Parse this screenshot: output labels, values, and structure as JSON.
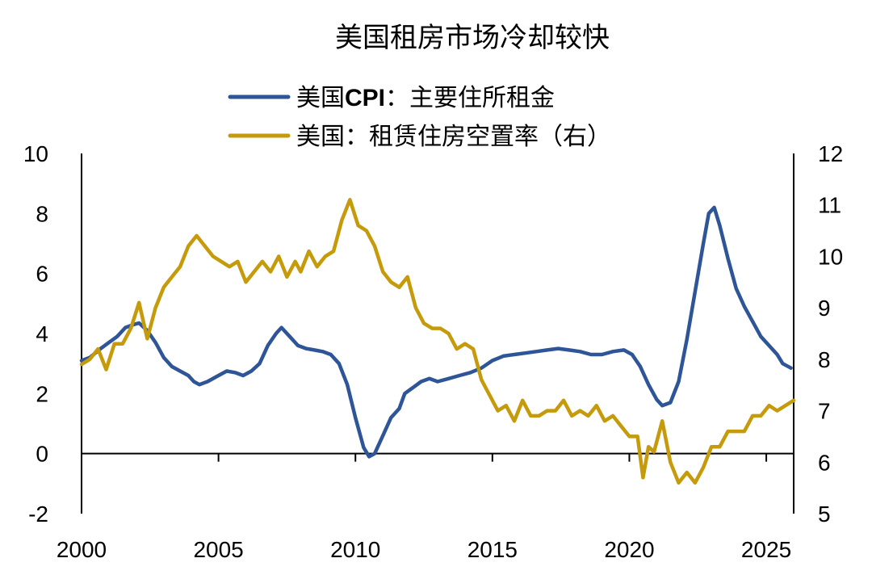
{
  "chart_data": {
    "type": "line",
    "title": "美国租房市场冷却较快",
    "legend": [
      {
        "name_prefix": "美国",
        "name_bold": "CPI",
        "name_suffix": "：主要住所租金",
        "color": "#2E5597"
      },
      {
        "name_prefix": "美国：租赁住房空置率（右）",
        "name_bold": "",
        "name_suffix": "",
        "color": "#C59A0B"
      }
    ],
    "x_axis": {
      "range": [
        2000,
        2026
      ],
      "ticks": [
        2000,
        2005,
        2010,
        2015,
        2020,
        2025
      ]
    },
    "y_left": {
      "range": [
        -2,
        10
      ],
      "ticks": [
        -2,
        0,
        2,
        4,
        6,
        8,
        10
      ]
    },
    "y_right": {
      "range": [
        5,
        12
      ],
      "ticks": [
        5,
        6,
        7,
        8,
        9,
        10,
        11,
        12
      ]
    },
    "series": [
      {
        "name": "美国CPI：主要住所租金",
        "axis": "left",
        "color": "#2E5597",
        "points": [
          [
            2000.0,
            3.1
          ],
          [
            2000.3,
            3.2
          ],
          [
            2000.7,
            3.5
          ],
          [
            2001.0,
            3.7
          ],
          [
            2001.3,
            3.9
          ],
          [
            2001.6,
            4.2
          ],
          [
            2001.9,
            4.3
          ],
          [
            2002.1,
            4.35
          ],
          [
            2002.4,
            4.1
          ],
          [
            2002.7,
            3.7
          ],
          [
            2003.0,
            3.2
          ],
          [
            2003.3,
            2.9
          ],
          [
            2003.6,
            2.75
          ],
          [
            2003.9,
            2.6
          ],
          [
            2004.1,
            2.4
          ],
          [
            2004.3,
            2.3
          ],
          [
            2004.6,
            2.4
          ],
          [
            2005.0,
            2.6
          ],
          [
            2005.3,
            2.75
          ],
          [
            2005.6,
            2.7
          ],
          [
            2005.9,
            2.6
          ],
          [
            2006.2,
            2.75
          ],
          [
            2006.5,
            3.0
          ],
          [
            2006.8,
            3.6
          ],
          [
            2007.1,
            4.0
          ],
          [
            2007.3,
            4.2
          ],
          [
            2007.6,
            3.9
          ],
          [
            2007.9,
            3.6
          ],
          [
            2008.2,
            3.5
          ],
          [
            2008.5,
            3.45
          ],
          [
            2008.8,
            3.4
          ],
          [
            2009.1,
            3.3
          ],
          [
            2009.4,
            3.0
          ],
          [
            2009.7,
            2.3
          ],
          [
            2010.0,
            1.2
          ],
          [
            2010.3,
            0.2
          ],
          [
            2010.5,
            -0.1
          ],
          [
            2010.7,
            0.0
          ],
          [
            2011.0,
            0.6
          ],
          [
            2011.3,
            1.2
          ],
          [
            2011.6,
            1.5
          ],
          [
            2011.8,
            2.0
          ],
          [
            2012.1,
            2.2
          ],
          [
            2012.4,
            2.4
          ],
          [
            2012.7,
            2.5
          ],
          [
            2013.0,
            2.4
          ],
          [
            2013.4,
            2.5
          ],
          [
            2013.8,
            2.6
          ],
          [
            2014.2,
            2.7
          ],
          [
            2014.6,
            2.85
          ],
          [
            2015.0,
            3.1
          ],
          [
            2015.4,
            3.25
          ],
          [
            2015.8,
            3.3
          ],
          [
            2016.2,
            3.35
          ],
          [
            2016.6,
            3.4
          ],
          [
            2017.0,
            3.45
          ],
          [
            2017.4,
            3.5
          ],
          [
            2017.8,
            3.45
          ],
          [
            2018.2,
            3.4
          ],
          [
            2018.6,
            3.3
          ],
          [
            2019.0,
            3.3
          ],
          [
            2019.4,
            3.4
          ],
          [
            2019.8,
            3.45
          ],
          [
            2020.1,
            3.3
          ],
          [
            2020.4,
            2.9
          ],
          [
            2020.7,
            2.3
          ],
          [
            2021.0,
            1.8
          ],
          [
            2021.2,
            1.6
          ],
          [
            2021.5,
            1.7
          ],
          [
            2021.8,
            2.4
          ],
          [
            2022.1,
            3.8
          ],
          [
            2022.4,
            5.4
          ],
          [
            2022.7,
            7.0
          ],
          [
            2022.9,
            8.0
          ],
          [
            2023.1,
            8.2
          ],
          [
            2023.3,
            7.6
          ],
          [
            2023.6,
            6.5
          ],
          [
            2023.9,
            5.5
          ],
          [
            2024.2,
            4.9
          ],
          [
            2024.5,
            4.4
          ],
          [
            2024.8,
            3.9
          ],
          [
            2025.1,
            3.6
          ],
          [
            2025.4,
            3.3
          ],
          [
            2025.6,
            3.0
          ],
          [
            2025.9,
            2.85
          ]
        ]
      },
      {
        "name": "美国：租赁住房空置率（右）",
        "axis": "right",
        "color": "#C59A0B",
        "points": [
          [
            2000.0,
            7.9
          ],
          [
            2000.3,
            8.0
          ],
          [
            2000.6,
            8.2
          ],
          [
            2000.9,
            7.8
          ],
          [
            2001.2,
            8.3
          ],
          [
            2001.5,
            8.3
          ],
          [
            2001.8,
            8.6
          ],
          [
            2002.1,
            9.1
          ],
          [
            2002.4,
            8.4
          ],
          [
            2002.7,
            9.0
          ],
          [
            2003.0,
            9.4
          ],
          [
            2003.3,
            9.6
          ],
          [
            2003.6,
            9.8
          ],
          [
            2003.9,
            10.2
          ],
          [
            2004.2,
            10.4
          ],
          [
            2004.5,
            10.2
          ],
          [
            2004.8,
            10.0
          ],
          [
            2005.1,
            9.9
          ],
          [
            2005.4,
            9.8
          ],
          [
            2005.7,
            9.9
          ],
          [
            2006.0,
            9.5
          ],
          [
            2006.3,
            9.7
          ],
          [
            2006.6,
            9.9
          ],
          [
            2006.9,
            9.7
          ],
          [
            2007.2,
            10.0
          ],
          [
            2007.5,
            9.6
          ],
          [
            2007.8,
            9.9
          ],
          [
            2008.0,
            9.7
          ],
          [
            2008.3,
            10.1
          ],
          [
            2008.6,
            9.8
          ],
          [
            2008.9,
            10.0
          ],
          [
            2009.2,
            10.1
          ],
          [
            2009.5,
            10.7
          ],
          [
            2009.8,
            11.1
          ],
          [
            2010.1,
            10.6
          ],
          [
            2010.4,
            10.5
          ],
          [
            2010.7,
            10.2
          ],
          [
            2011.0,
            9.7
          ],
          [
            2011.3,
            9.5
          ],
          [
            2011.6,
            9.4
          ],
          [
            2011.9,
            9.6
          ],
          [
            2012.2,
            9.0
          ],
          [
            2012.5,
            8.7
          ],
          [
            2012.8,
            8.6
          ],
          [
            2013.1,
            8.6
          ],
          [
            2013.4,
            8.5
          ],
          [
            2013.7,
            8.2
          ],
          [
            2014.0,
            8.3
          ],
          [
            2014.3,
            8.2
          ],
          [
            2014.6,
            7.6
          ],
          [
            2014.9,
            7.3
          ],
          [
            2015.2,
            7.0
          ],
          [
            2015.5,
            7.1
          ],
          [
            2015.8,
            6.8
          ],
          [
            2016.1,
            7.2
          ],
          [
            2016.4,
            6.9
          ],
          [
            2016.7,
            6.9
          ],
          [
            2017.0,
            7.0
          ],
          [
            2017.3,
            7.0
          ],
          [
            2017.6,
            7.2
          ],
          [
            2017.9,
            6.9
          ],
          [
            2018.2,
            7.0
          ],
          [
            2018.5,
            6.9
          ],
          [
            2018.8,
            7.1
          ],
          [
            2019.1,
            6.8
          ],
          [
            2019.4,
            6.9
          ],
          [
            2019.7,
            6.7
          ],
          [
            2020.0,
            6.5
          ],
          [
            2020.3,
            6.5
          ],
          [
            2020.5,
            5.7
          ],
          [
            2020.7,
            6.3
          ],
          [
            2020.9,
            6.2
          ],
          [
            2021.2,
            6.8
          ],
          [
            2021.5,
            6.0
          ],
          [
            2021.8,
            5.6
          ],
          [
            2022.1,
            5.8
          ],
          [
            2022.4,
            5.6
          ],
          [
            2022.7,
            5.9
          ],
          [
            2023.0,
            6.3
          ],
          [
            2023.3,
            6.3
          ],
          [
            2023.6,
            6.6
          ],
          [
            2023.9,
            6.6
          ],
          [
            2024.2,
            6.6
          ],
          [
            2024.5,
            6.9
          ],
          [
            2024.8,
            6.9
          ],
          [
            2025.1,
            7.1
          ],
          [
            2025.4,
            7.0
          ],
          [
            2025.7,
            7.1
          ],
          [
            2026.0,
            7.2
          ]
        ]
      }
    ]
  }
}
